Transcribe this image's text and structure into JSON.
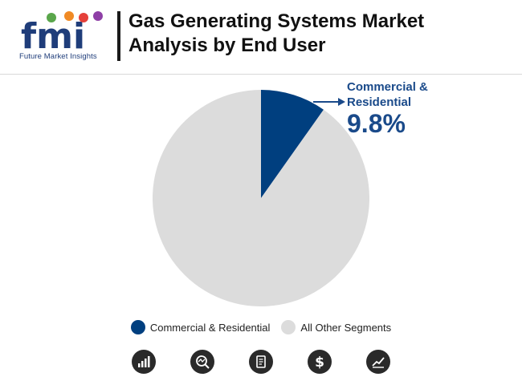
{
  "brand": {
    "tagline": "Future Market Insights",
    "colors": {
      "navy": "#1f3d7a",
      "dot_green": "#5aa64b",
      "dot_orange": "#f08a24",
      "dot_red": "#e5403a",
      "dot_purple": "#8e3fa6"
    }
  },
  "header": {
    "title_line1": "Gas Generating Systems Market",
    "title_line2": "Analysis by End User"
  },
  "callout": {
    "label": "Commercial & Residential",
    "value": "9.8%"
  },
  "chart_data": {
    "type": "pie",
    "title": "Gas Generating Systems Market Analysis by End User",
    "slices": [
      {
        "label": "Commercial & Residential",
        "value": 9.8,
        "color": "#003f7f"
      },
      {
        "label": "All Other Segments",
        "value": 90.2,
        "color": "#dcdcdc"
      }
    ],
    "legend_placement": "bottom",
    "start": "top",
    "direction": "clockwise"
  },
  "footer_icons": [
    "bar-growth-icon",
    "magnifier-chart-icon",
    "report-document-icon",
    "dollar-icon",
    "line-trend-icon"
  ]
}
